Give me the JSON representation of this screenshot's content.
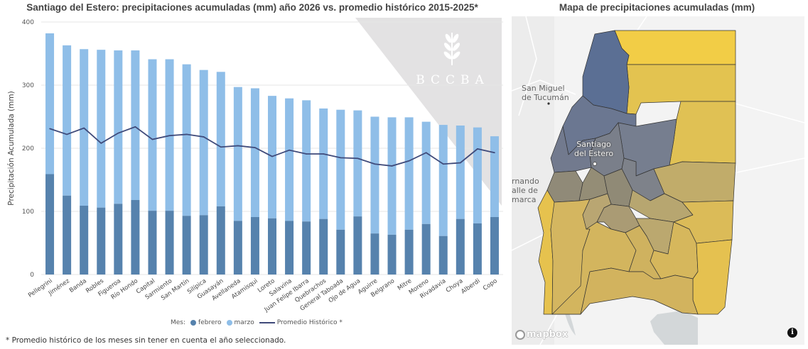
{
  "chart_data": {
    "type": "bar",
    "stacked": true,
    "title": "Santiago del Estero: precipitaciones acumuladas (mm) año 2026 vs. promedio histórico 2015-2025*",
    "xlabel": "",
    "ylabel": "Precipitación Acumulada (mm)",
    "ylim": [
      0,
      400
    ],
    "yticks": [
      "0",
      "100",
      "200",
      "300",
      "400"
    ],
    "grid": true,
    "legend_position": "bottom",
    "legend_title": "Mes:",
    "categories": [
      "Pellegrini",
      "Jiménez",
      "Banda",
      "Robles",
      "Figueroa",
      "Río Hondo",
      "Capital",
      "Sarmiento",
      "San Martín",
      "Silípica",
      "Guasayán",
      "Avellaneda",
      "Atamisqui",
      "Loreto",
      "Salavina",
      "Juan Felipe Ibarra",
      "Quebrachos",
      "General Taboada",
      "Ojo de Agua",
      "Aguirre",
      "Belgrano",
      "Mitre",
      "Moreno",
      "Rivadavia",
      "Choya",
      "Alberdi",
      "Copo"
    ],
    "series": [
      {
        "name": "febrero",
        "type": "bar",
        "color": "#5682ad",
        "values": [
          159,
          125,
          109,
          106,
          112,
          118,
          101,
          101,
          93,
          94,
          108,
          85,
          91,
          89,
          85,
          84,
          88,
          71,
          92,
          65,
          63,
          71,
          80,
          61,
          88,
          81,
          91
        ]
      },
      {
        "name": "marzo",
        "type": "bar",
        "color": "#8fbee8",
        "values": [
          223,
          238,
          248,
          250,
          243,
          237,
          240,
          240,
          240,
          230,
          213,
          212,
          204,
          194,
          194,
          192,
          175,
          190,
          168,
          185,
          186,
          178,
          162,
          176,
          148,
          152,
          128
        ]
      },
      {
        "name": "Promedio Histórico *",
        "type": "line",
        "color": "#3f4a7a",
        "values": [
          231,
          222,
          232,
          208,
          224,
          234,
          214,
          220,
          222,
          218,
          202,
          204,
          201,
          187,
          197,
          191,
          191,
          185,
          184,
          175,
          172,
          180,
          193,
          175,
          177,
          199,
          193
        ]
      }
    ]
  },
  "watermark": {
    "text": "BCCBA",
    "icon": "wheat-icon"
  },
  "footnote": "* Promedio histórico de los meses sin tener en cuenta el año seleccionado.",
  "map": {
    "title": "Mapa de precipitaciones acumuladas (mm)",
    "labels": {
      "tucuman": "San Miguel\nde Tucumán",
      "santiago": "Santiago\ndel Estero",
      "catamarca": "rnando\nalle de\nmarca"
    },
    "attribution": "mapbox",
    "info_icon": "info-icon",
    "colors": {
      "high": "#5b6f94",
      "mid_high": "#767e8f",
      "mid": "#9a9070",
      "mid_low": "#c7ae68",
      "low": "#e6c24e",
      "lowest": "#f2cd46"
    }
  }
}
